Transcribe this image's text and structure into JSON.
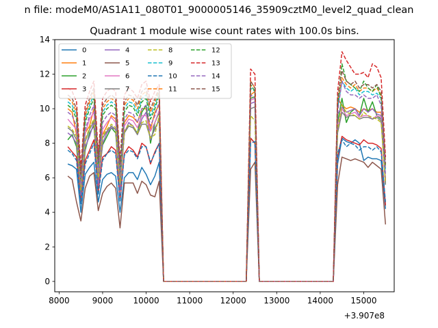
{
  "suptitle": "n file: modeM0/AS1A11_080T01_9000005146_35909cztM0_level2_quad_clean",
  "chart_data": {
    "type": "line",
    "title": "Quadrant 1 module wise count rates with 100.0s bins.",
    "xlabel": "",
    "ylabel": "",
    "offset_text": "+3.907e8",
    "xlim": [
      7900,
      15700
    ],
    "ylim": [
      -0.6,
      14
    ],
    "x_ticks": [
      8000,
      9000,
      10000,
      11000,
      12000,
      13000,
      14000,
      15000
    ],
    "y_ticks": [
      0,
      2,
      4,
      6,
      8,
      10,
      12,
      14
    ],
    "grid": false,
    "legend": {
      "position": "top-left",
      "columns": 4
    },
    "x": [
      8200,
      8300,
      8400,
      8500,
      8600,
      8700,
      8800,
      8900,
      9000,
      9100,
      9200,
      9300,
      9400,
      9500,
      9600,
      9700,
      9800,
      9900,
      10000,
      10100,
      10200,
      10300,
      10400,
      10500,
      12300,
      12400,
      12500,
      12600,
      12700,
      12800,
      14300,
      14400,
      14500,
      14600,
      14700,
      14800,
      14900,
      15000,
      15100,
      15200,
      15300,
      15400,
      15500
    ],
    "series": [
      {
        "name": "0",
        "color": "#1f77b4",
        "dash": "solid",
        "values": [
          6.8,
          6.7,
          6.5,
          4.0,
          6.2,
          6.6,
          6.9,
          4.6,
          5.9,
          6.2,
          6.3,
          6.1,
          4.0,
          6.0,
          6.3,
          6.3,
          5.9,
          6.6,
          6.2,
          5.6,
          6.1,
          6.9,
          0,
          0,
          0,
          8.3,
          8.0,
          0,
          0,
          0,
          0,
          6.8,
          8.3,
          8.1,
          8.0,
          8.2,
          8.0,
          7.0,
          7.2,
          7.1,
          7.1,
          7.0,
          4.2
        ]
      },
      {
        "name": "1",
        "color": "#ff7f0e",
        "dash": "solid",
        "values": [
          10.0,
          9.8,
          8.5,
          5.2,
          8.6,
          9.0,
          10.0,
          6.0,
          8.5,
          9.0,
          9.6,
          9.4,
          5.8,
          9.2,
          9.6,
          9.5,
          9.2,
          10.0,
          10.0,
          8.8,
          9.8,
          10.2,
          0,
          0,
          0,
          10.8,
          11.0,
          0,
          0,
          0,
          0,
          10.6,
          10.2,
          10.0,
          10.1,
          10.0,
          9.8,
          10.0,
          9.9,
          10.0,
          9.8,
          9.8,
          5.9
        ]
      },
      {
        "name": "2",
        "color": "#2ca02c",
        "dash": "solid",
        "values": [
          8.2,
          8.5,
          7.8,
          4.8,
          7.6,
          8.6,
          9.0,
          5.8,
          7.9,
          8.4,
          8.9,
          8.6,
          5.4,
          8.6,
          9.0,
          8.9,
          8.6,
          9.8,
          10.2,
          8.0,
          9.2,
          9.8,
          0,
          0,
          0,
          10.6,
          10.7,
          0,
          0,
          0,
          0,
          9.2,
          10.6,
          9.2,
          9.8,
          10.0,
          9.6,
          10.6,
          9.8,
          10.4,
          9.6,
          9.4,
          5.6
        ]
      },
      {
        "name": "3",
        "color": "#d62728",
        "dash": "solid",
        "values": [
          7.8,
          7.5,
          7.2,
          4.6,
          7.0,
          7.6,
          8.2,
          5.2,
          7.2,
          7.4,
          7.8,
          7.6,
          4.7,
          7.4,
          7.8,
          7.6,
          7.2,
          8.0,
          7.8,
          6.8,
          7.5,
          8.0,
          0,
          0,
          0,
          8.3,
          8.0,
          0,
          0,
          0,
          0,
          7.2,
          8.4,
          8.2,
          8.1,
          8.0,
          7.9,
          8.2,
          8.0,
          8.0,
          7.9,
          7.7,
          4.4
        ]
      },
      {
        "name": "4",
        "color": "#9467bd",
        "dash": "solid",
        "values": [
          8.6,
          8.4,
          8.0,
          5.0,
          7.8,
          8.4,
          9.2,
          5.6,
          8.0,
          8.6,
          8.9,
          8.8,
          5.3,
          8.6,
          9.2,
          9.0,
          8.5,
          9.4,
          9.8,
          8.2,
          8.9,
          9.3,
          0,
          0,
          0,
          10.3,
          10.4,
          0,
          0,
          0,
          0,
          9.7,
          10.1,
          9.8,
          9.9,
          10.0,
          9.6,
          10.0,
          9.8,
          10.0,
          9.7,
          9.6,
          5.8
        ]
      },
      {
        "name": "5",
        "color": "#8c564b",
        "dash": "solid",
        "values": [
          6.1,
          5.9,
          4.6,
          3.5,
          5.4,
          6.1,
          6.3,
          4.1,
          5.1,
          5.5,
          5.7,
          5.4,
          3.1,
          5.7,
          5.7,
          5.7,
          5.1,
          5.8,
          5.6,
          5.0,
          4.9,
          5.8,
          0,
          0,
          0,
          6.5,
          6.9,
          0,
          0,
          0,
          0,
          5.6,
          7.2,
          7.1,
          7.0,
          7.1,
          7.0,
          6.9,
          6.6,
          6.9,
          6.7,
          6.5,
          3.3
        ]
      },
      {
        "name": "6",
        "color": "#e377c2",
        "dash": "solid",
        "values": [
          9.4,
          9.1,
          8.8,
          5.5,
          8.6,
          9.4,
          9.8,
          6.2,
          8.8,
          9.2,
          9.5,
          9.2,
          5.9,
          9.0,
          9.4,
          9.3,
          8.9,
          9.6,
          9.6,
          8.7,
          9.2,
          9.9,
          0,
          0,
          0,
          10.5,
          10.6,
          0,
          0,
          0,
          0,
          9.0,
          10.0,
          9.6,
          9.7,
          9.8,
          9.5,
          9.6,
          9.6,
          9.4,
          9.6,
          9.5,
          5.8
        ]
      },
      {
        "name": "7",
        "color": "#7f7f7f",
        "dash": "solid",
        "values": [
          8.9,
          8.7,
          8.2,
          5.2,
          8.1,
          8.8,
          9.3,
          5.9,
          8.3,
          8.7,
          9.0,
          8.8,
          5.6,
          8.6,
          9.0,
          8.9,
          8.5,
          9.1,
          9.1,
          8.3,
          8.8,
          9.4,
          0,
          0,
          0,
          10.0,
          10.1,
          0,
          0,
          0,
          0,
          8.6,
          9.8,
          9.5,
          9.6,
          9.6,
          9.4,
          9.5,
          9.5,
          9.4,
          9.5,
          9.3,
          5.6
        ]
      },
      {
        "name": "8",
        "color": "#bcbd22",
        "dash": "dashed",
        "values": [
          9.0,
          8.8,
          8.4,
          5.3,
          8.2,
          8.9,
          9.4,
          6.0,
          8.4,
          8.8,
          9.1,
          8.9,
          5.7,
          8.7,
          9.1,
          9.0,
          8.6,
          9.2,
          9.3,
          8.3,
          8.5,
          9.6,
          0,
          0,
          0,
          9.6,
          9.3,
          0,
          0,
          0,
          0,
          8.8,
          10.2,
          9.8,
          9.7,
          9.6,
          9.4,
          9.8,
          9.6,
          9.5,
          9.4,
          9.2,
          5.7
        ]
      },
      {
        "name": "9",
        "color": "#17becf",
        "dash": "dashed",
        "values": [
          10.4,
          10.2,
          9.6,
          6.0,
          9.4,
          10.2,
          10.8,
          6.8,
          9.8,
          10.2,
          10.4,
          10.2,
          6.5,
          10.0,
          10.4,
          10.3,
          9.8,
          10.6,
          10.8,
          9.6,
          10.2,
          11.0,
          0,
          0,
          0,
          11.2,
          11.0,
          0,
          0,
          0,
          0,
          10.0,
          11.6,
          11.2,
          11.0,
          11.2,
          10.8,
          11.0,
          11.0,
          10.8,
          10.9,
          10.6,
          6.4
        ]
      },
      {
        "name": "10",
        "color": "#1f77b4",
        "dash": "dashed",
        "values": [
          7.6,
          7.4,
          7.0,
          4.5,
          6.8,
          7.4,
          8.0,
          5.0,
          7.0,
          7.4,
          7.6,
          7.4,
          4.6,
          7.3,
          7.6,
          7.5,
          7.1,
          7.8,
          7.8,
          6.9,
          7.4,
          8.0,
          0,
          0,
          0,
          8.0,
          8.1,
          0,
          0,
          0,
          0,
          7.4,
          8.2,
          7.8,
          8.0,
          7.9,
          7.6,
          7.8,
          7.8,
          7.6,
          7.8,
          7.5,
          4.6
        ]
      },
      {
        "name": "11",
        "color": "#ff7f0e",
        "dash": "dashed",
        "values": [
          10.6,
          10.4,
          9.8,
          6.0,
          9.6,
          10.4,
          11.0,
          6.9,
          10.0,
          10.4,
          10.6,
          10.4,
          6.6,
          10.2,
          10.6,
          10.5,
          10.0,
          10.8,
          11.0,
          9.8,
          10.4,
          11.1,
          0,
          0,
          0,
          11.6,
          11.2,
          0,
          0,
          0,
          0,
          10.4,
          11.8,
          11.4,
          11.2,
          11.4,
          11.0,
          11.2,
          11.2,
          11.0,
          11.2,
          10.8,
          6.6
        ]
      },
      {
        "name": "12",
        "color": "#2ca02c",
        "dash": "dashed",
        "values": [
          10.2,
          10.0,
          9.4,
          5.8,
          9.2,
          10.0,
          10.6,
          6.6,
          9.6,
          10.0,
          10.2,
          10.0,
          6.3,
          9.8,
          10.2,
          10.1,
          9.6,
          10.4,
          10.6,
          9.4,
          10.0,
          10.8,
          0,
          0,
          0,
          11.4,
          11.0,
          0,
          0,
          0,
          0,
          10.2,
          12.6,
          11.6,
          11.4,
          11.2,
          11.0,
          11.6,
          11.2,
          11.0,
          11.4,
          10.6,
          6.6
        ]
      },
      {
        "name": "13",
        "color": "#d62728",
        "dash": "dashed",
        "values": [
          11.2,
          11.0,
          10.4,
          6.6,
          10.2,
          11.0,
          11.6,
          7.4,
          10.6,
          11.0,
          11.2,
          11.0,
          7.0,
          10.8,
          11.2,
          11.0,
          10.6,
          11.4,
          11.6,
          10.4,
          11.0,
          11.4,
          0,
          0,
          0,
          12.3,
          12.0,
          0,
          0,
          0,
          0,
          11.0,
          13.3,
          12.8,
          12.4,
          12.0,
          12.0,
          12.1,
          11.8,
          12.6,
          12.4,
          11.8,
          7.2
        ]
      },
      {
        "name": "14",
        "color": "#9467bd",
        "dash": "dashed",
        "values": [
          9.8,
          9.6,
          9.0,
          5.6,
          8.8,
          9.6,
          10.2,
          6.4,
          9.2,
          9.6,
          9.8,
          9.6,
          6.1,
          9.4,
          9.8,
          9.7,
          9.2,
          10.0,
          10.2,
          9.0,
          9.6,
          10.4,
          0,
          0,
          0,
          10.8,
          10.6,
          0,
          0,
          0,
          0,
          9.8,
          11.6,
          11.0,
          10.8,
          10.8,
          10.6,
          10.8,
          10.6,
          10.6,
          10.8,
          10.2,
          6.2
        ]
      },
      {
        "name": "15",
        "color": "#8c564b",
        "dash": "dashed",
        "values": [
          10.8,
          10.6,
          10.0,
          6.2,
          9.8,
          10.6,
          11.2,
          7.0,
          10.2,
          10.6,
          10.8,
          10.6,
          6.8,
          10.4,
          10.8,
          10.7,
          10.2,
          11.0,
          11.2,
          10.0,
          10.6,
          11.2,
          0,
          0,
          0,
          11.6,
          11.2,
          0,
          0,
          0,
          0,
          10.6,
          12.2,
          11.6,
          11.4,
          11.6,
          11.2,
          11.4,
          11.4,
          11.2,
          11.4,
          11.0,
          6.8
        ]
      }
    ]
  }
}
